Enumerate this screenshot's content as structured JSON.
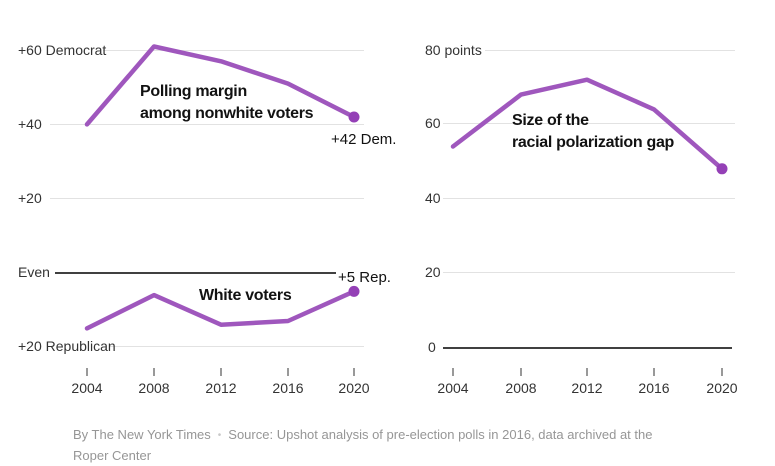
{
  "colors": {
    "line": "#9f57bd",
    "dot": "#9440b6",
    "gridline": "#e2e2e2",
    "baseline": "#404040",
    "axis_label": "#333333",
    "annotation": "#121212",
    "footer_text": "#969696"
  },
  "charts": [
    {
      "name": "nonwhite-margin",
      "annotation": {
        "line1": "Polling margin",
        "line2": "among nonwhite voters"
      },
      "y_labels": [
        "+60 Democrat",
        "+40",
        "+20"
      ],
      "end_label": "+42 Dem."
    },
    {
      "name": "white-margin",
      "annotation": {
        "line1": "White voters",
        "line2": ""
      },
      "y_labels": [
        "Even",
        "+20 Republican"
      ],
      "end_label": "+5 Rep."
    },
    {
      "name": "polarization-gap",
      "annotation": {
        "line1": "Size of the",
        "line2": "racial polarization gap"
      },
      "y_labels": [
        "80 points",
        "60",
        "40",
        "20",
        "0"
      ]
    }
  ],
  "x_axis": {
    "years": [
      "2004",
      "2008",
      "2012",
      "2016",
      "2020"
    ]
  },
  "footer": {
    "byline": "By The New York Times",
    "separator": "•",
    "source": "Source: Upshot analysis of pre-election polls in 2016, data archived at the Roper Center"
  },
  "chart_data": [
    {
      "type": "line",
      "title": "Polling margin among nonwhite voters",
      "x": [
        2004,
        2008,
        2012,
        2016,
        2020
      ],
      "values": [
        40,
        61,
        57,
        51,
        42
      ],
      "value_meaning": "Democratic polling margin, points",
      "yticks": [
        "+60 Democrat",
        "+40",
        "+20"
      ],
      "end_annotation": "+42 Dem.",
      "grid": true,
      "legend": "none"
    },
    {
      "type": "line",
      "title": "White voters",
      "x": [
        2004,
        2008,
        2012,
        2016,
        2020
      ],
      "values": [
        -15,
        -6,
        -14,
        -13,
        -5
      ],
      "value_meaning": "Polling margin, points; negative = Republican lead",
      "yticks": [
        "Even",
        "+20 Republican"
      ],
      "end_annotation": "+5 Rep.",
      "grid": true,
      "legend": "none"
    },
    {
      "type": "line",
      "title": "Size of the racial polarization gap",
      "x": [
        2004,
        2008,
        2012,
        2016,
        2020
      ],
      "values": [
        54,
        68,
        72,
        64,
        48
      ],
      "value_meaning": "Gap between white and nonwhite margins, points",
      "yticks": [
        "80 points",
        "60",
        "40",
        "20",
        "0"
      ],
      "ylim": [
        0,
        80
      ],
      "grid": true,
      "legend": "none"
    }
  ]
}
